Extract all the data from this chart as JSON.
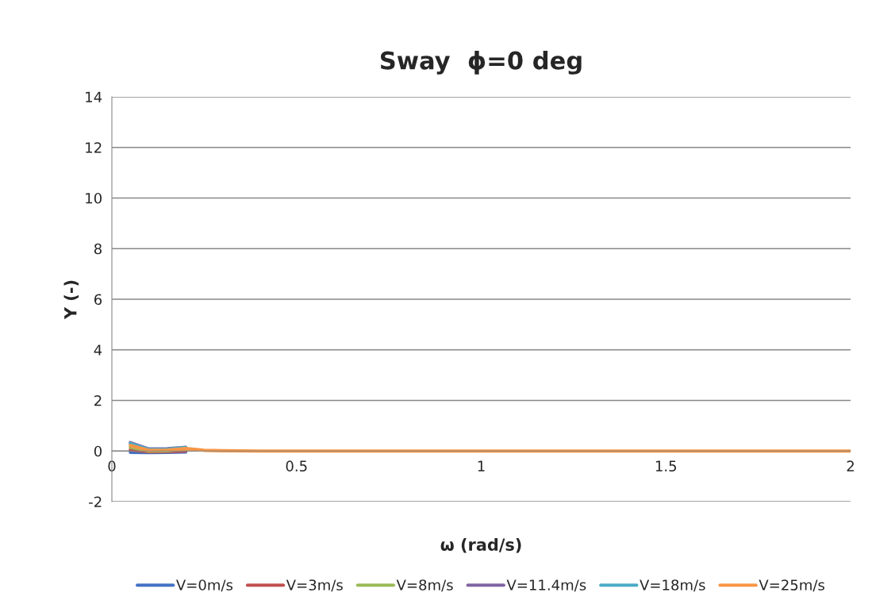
{
  "chart_data": {
    "type": "line",
    "title": "Sway  ϕ=0 deg",
    "xlabel": "ω (rad/s)",
    "ylabel": "Y (-)",
    "x": [
      0.05,
      0.1,
      0.15,
      0.2,
      0.25,
      0.3,
      0.4,
      0.5,
      0.75,
      1.0,
      1.25,
      1.5,
      1.75,
      2.0
    ],
    "series": [
      {
        "name": "V=0m/s",
        "color": "#4472c4",
        "values": [
          -0.05,
          -0.06,
          -0.05,
          -0.04,
          null,
          null,
          null,
          null,
          null,
          null,
          null,
          null,
          null,
          null
        ]
      },
      {
        "name": "V=3m/s",
        "color": "#c0504d",
        "values": [
          0.05,
          -0.03,
          -0.02,
          0.0,
          null,
          null,
          null,
          null,
          null,
          null,
          null,
          null,
          null,
          null
        ]
      },
      {
        "name": "V=8m/s",
        "color": "#9bbb59",
        "values": [
          0.15,
          0.0,
          0.01,
          0.08,
          null,
          null,
          null,
          null,
          null,
          null,
          null,
          null,
          null,
          null
        ]
      },
      {
        "name": "V=11.4m/s",
        "color": "#8064a2",
        "values": [
          0.33,
          0.08,
          0.09,
          0.15,
          null,
          null,
          null,
          null,
          null,
          null,
          null,
          null,
          null,
          null
        ]
      },
      {
        "name": "V=18m/s",
        "color": "#4bacc6",
        "values": [
          0.3,
          0.06,
          0.07,
          0.14,
          null,
          null,
          null,
          null,
          null,
          null,
          null,
          null,
          null,
          null
        ]
      },
      {
        "name": "V=25m/s",
        "color": "#f79646",
        "values": [
          0.22,
          0.03,
          0.04,
          0.1,
          0.03,
          0.01,
          0,
          0,
          0,
          0,
          0,
          0,
          0,
          0
        ]
      }
    ],
    "xlim": [
      0,
      2
    ],
    "xticks": [
      0,
      0.5,
      1,
      1.5,
      2
    ],
    "ylim": [
      -2,
      14
    ],
    "yticks": [
      -2,
      0,
      2,
      4,
      6,
      8,
      10,
      12,
      14
    ],
    "grid": "y",
    "legend": "bottom",
    "line_style": "solid"
  }
}
